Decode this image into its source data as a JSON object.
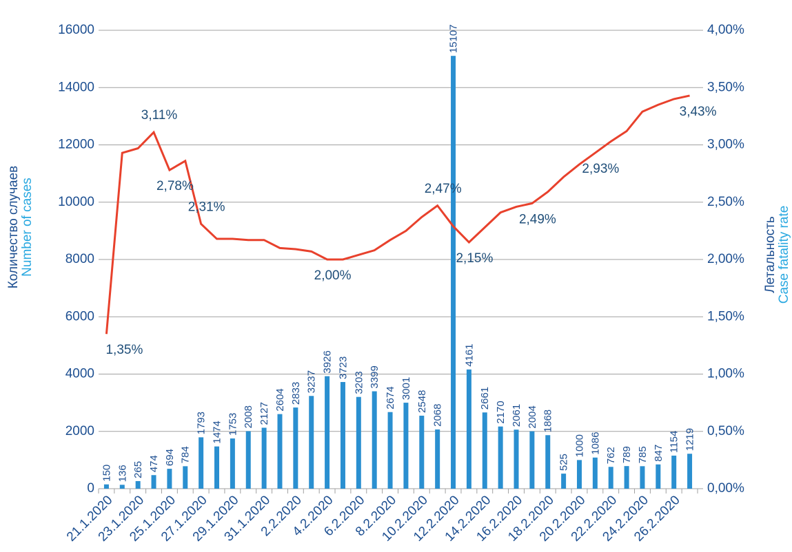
{
  "chart_data": {
    "type": "combo",
    "y_label": "Количество случаев",
    "y_label_en": "Number of cases",
    "y2_label": "Летальность",
    "y2_label_en": "Case fatality rate",
    "categories": [
      "21.1.2020",
      null,
      "23.1.2020",
      null,
      "25.1.2020",
      null,
      "27.1.2020",
      null,
      "29.1.2020",
      null,
      "31.1.2020",
      null,
      "2.2.2020",
      null,
      "4.2.2020",
      null,
      "6.2.2020",
      null,
      "8.2.2020",
      null,
      "10.2.2020",
      null,
      "12.2.2020",
      null,
      "14.2.2020",
      null,
      "16.2.2020",
      null,
      "18.2.2020",
      null,
      "20.2.2020",
      null,
      "22.2.2020",
      null,
      "24.2.2020",
      null,
      "26.2.2020",
      null
    ],
    "series": [
      {
        "type": "bar",
        "color": "#2a8fd0",
        "values": [
          150,
          136,
          265,
          474,
          694,
          784,
          1793,
          1474,
          1753,
          2008,
          2127,
          2604,
          2833,
          3237,
          3926,
          3723,
          3203,
          3399,
          2674,
          3001,
          2548,
          2068,
          15107,
          4161,
          2661,
          2170,
          2061,
          2004,
          1868,
          525,
          1000,
          1086,
          762,
          789,
          785,
          847,
          1154,
          1219
        ]
      },
      {
        "type": "line",
        "axis": "y2",
        "color": "#e8412c",
        "values": [
          1.35,
          2.93,
          2.97,
          3.11,
          2.78,
          2.86,
          2.31,
          2.18,
          2.18,
          2.17,
          2.17,
          2.1,
          2.09,
          2.07,
          2.0,
          2.0,
          2.04,
          2.08,
          2.17,
          2.25,
          2.37,
          2.47,
          2.29,
          2.15,
          2.28,
          2.41,
          2.46,
          2.49,
          2.59,
          2.72,
          2.83,
          2.93,
          3.03,
          3.12,
          3.29,
          3.35,
          3.4,
          3.43
        ],
        "value_labels": [
          "1,35%",
          null,
          null,
          "3,11%",
          "2,78%",
          null,
          "2,31%",
          null,
          null,
          null,
          null,
          null,
          null,
          null,
          "2,00%",
          null,
          null,
          null,
          null,
          null,
          null,
          "2,47%",
          null,
          "2,15%",
          null,
          null,
          null,
          "2,49%",
          null,
          null,
          null,
          "2,93%",
          null,
          null,
          null,
          null,
          null,
          "3,43%"
        ]
      }
    ],
    "ylim": [
      0,
      16000
    ],
    "yticks": [
      0,
      2000,
      4000,
      6000,
      8000,
      10000,
      12000,
      14000,
      16000
    ],
    "y2lim": [
      0,
      4
    ],
    "y2ticks": [
      {
        "value": 0,
        "label": "0,00%"
      },
      {
        "value": 0.5,
        "label": "0,50%"
      },
      {
        "value": 1,
        "label": "1,00%"
      },
      {
        "value": 1.5,
        "label": "1,50%"
      },
      {
        "value": 2,
        "label": "2,00%"
      },
      {
        "value": 2.5,
        "label": "2,50%"
      },
      {
        "value": 3,
        "label": "3,00%"
      },
      {
        "value": 3.5,
        "label": "3,50%"
      },
      {
        "value": 4,
        "label": "4,00%"
      }
    ],
    "grid": true
  }
}
